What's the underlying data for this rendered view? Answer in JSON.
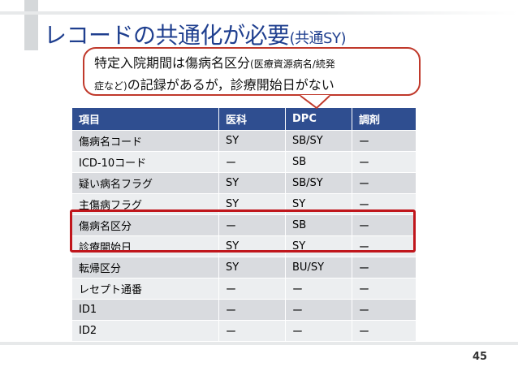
{
  "slide": {
    "title_main": "レコードの共通化が必要",
    "title_sub": "(共通SY)",
    "page_number": "45"
  },
  "callout": {
    "line1_a": "特定入院期間は傷病名区分",
    "line1_b": "(医療資源病名/続発",
    "line2_a": "症など)",
    "line2_b": "の記録があるが，診療開始日がない"
  },
  "table": {
    "headers": [
      "項目",
      "医科",
      "DPC",
      "調剤"
    ],
    "rows": [
      [
        "傷病名コード",
        "SY",
        "SB/SY",
        "ー"
      ],
      [
        "ICD-10コード",
        "ー",
        "SB",
        "ー"
      ],
      [
        "疑い病名フラグ",
        "SY",
        "SB/SY",
        "ー"
      ],
      [
        "主傷病フラグ",
        "SY",
        "SY",
        "ー"
      ],
      [
        "傷病名区分",
        "ー",
        "SB",
        "ー"
      ],
      [
        "診療開始日",
        "SY",
        "SY",
        "ー"
      ],
      [
        "転帰区分",
        "SY",
        "BU/SY",
        "ー"
      ],
      [
        "レセプト通番",
        "ー",
        "ー",
        "ー"
      ],
      [
        "ID1",
        "ー",
        "ー",
        "ー"
      ],
      [
        "ID2",
        "ー",
        "ー",
        "ー"
      ]
    ]
  },
  "colors": {
    "title": "#1f3f8f",
    "header_bg": "#2f4e90",
    "row_odd": "#d9dbdf",
    "row_even": "#eceef0",
    "highlight": "#c0161c",
    "callout_border": "#c0392b"
  }
}
